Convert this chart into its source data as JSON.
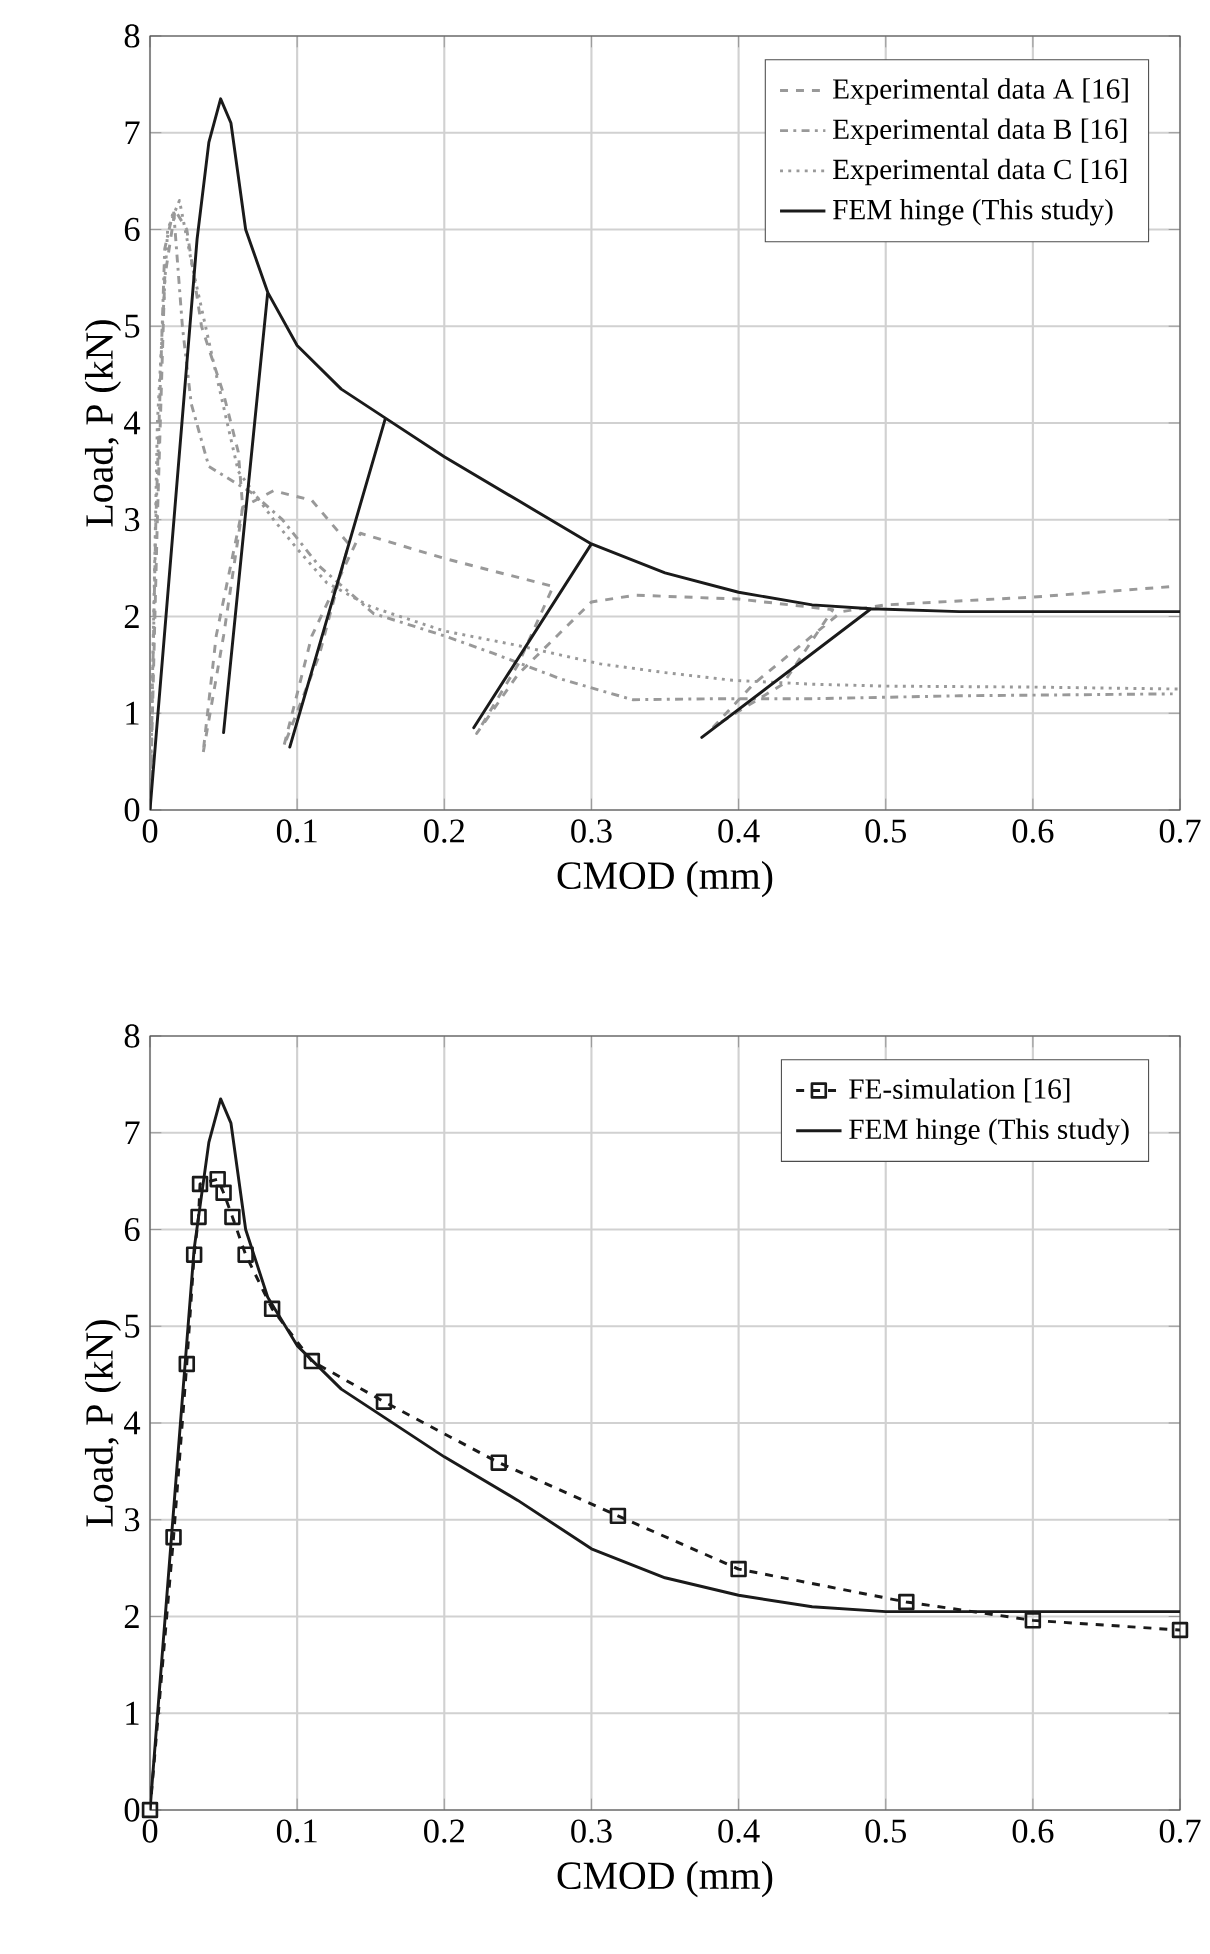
{
  "chart_data": [
    {
      "type": "line",
      "xlabel": "CMOD (mm)",
      "ylabel": "Load, P (kN)",
      "xlim": [
        0,
        0.7
      ],
      "ylim": [
        0,
        8
      ],
      "xticks": [
        0,
        0.1,
        0.2,
        0.3,
        0.4,
        0.5,
        0.6,
        0.7
      ],
      "yticks": [
        0,
        1,
        2,
        3,
        4,
        5,
        6,
        7,
        8
      ],
      "grid": true,
      "legend": "top right",
      "series": [
        {
          "name": "Experimental data A [16]",
          "color": "#999999",
          "line_style": "dashed",
          "x": [
            0,
            0.005,
            0.01,
            0.017,
            0.025,
            0.035,
            0.05,
            0.06,
            0.063,
            0.05,
            0.036,
            0.045,
            0.063,
            0.084,
            0.11,
            0.135,
            0.115,
            0.091,
            0.11,
            0.143,
            0.2,
            0.274,
            0.25,
            0.222,
            0.25,
            0.3,
            0.33,
            0.4,
            0.464,
            0.43,
            0.383,
            0.41,
            0.47,
            0.5,
            0.6,
            0.695
          ],
          "values": [
            0,
            3,
            5.5,
            6.2,
            6,
            5,
            4.3,
            3.7,
            3.13,
            1.8,
            0.58,
            1.8,
            3.13,
            3.3,
            3.2,
            2.75,
            1.6,
            0.66,
            1.8,
            2.86,
            2.6,
            2.31,
            1.5,
            0.79,
            1.4,
            2.15,
            2.22,
            2.18,
            2.07,
            1.3,
            0.86,
            1.3,
            2.05,
            2.12,
            2.2,
            2.31
          ]
        },
        {
          "name": "Experimental data B [16]",
          "color": "#999999",
          "line_style": "dashdot",
          "x": [
            0,
            0.004,
            0.01,
            0.016,
            0.022,
            0.028,
            0.04,
            0.07,
            0.09,
            0.115,
            0.152,
            0.2,
            0.233,
            0.28,
            0.328,
            0.387,
            0.45,
            0.55,
            0.695
          ],
          "values": [
            0,
            3,
            5.8,
            6.2,
            5,
            4.2,
            3.55,
            3.27,
            3.0,
            2.52,
            2.03,
            1.8,
            1.62,
            1.35,
            1.14,
            1.15,
            1.15,
            1.18,
            1.2
          ]
        },
        {
          "name": "Experimental data C [16]",
          "color": "#999999",
          "line_style": "dotted",
          "x": [
            0,
            0.005,
            0.012,
            0.02,
            0.029,
            0.045,
            0.06,
            0.084,
            0.1,
            0.12,
            0.15,
            0.2,
            0.25,
            0.306,
            0.35,
            0.396,
            0.45,
            0.5,
            0.6,
            0.7
          ],
          "values": [
            0,
            4,
            6,
            6.3,
            5.6,
            4.5,
            3.5,
            3.0,
            2.7,
            2.35,
            2.1,
            1.85,
            1.7,
            1.51,
            1.42,
            1.34,
            1.3,
            1.28,
            1.27,
            1.25
          ]
        },
        {
          "name": "FEM hinge (This study)",
          "color": "#1a1a1a",
          "line_style": "solid",
          "x": [
            0,
            0.032,
            0.04,
            0.048,
            0.055,
            0.065,
            0.08,
            0.05,
            0.08,
            0.1,
            0.13,
            0.16,
            0.095,
            0.16,
            0.2,
            0.25,
            0.3,
            0.22,
            0.3,
            0.35,
            0.4,
            0.45,
            0.49,
            0.375,
            0.49,
            0.55,
            0.6,
            0.7
          ],
          "values": [
            0,
            5.9,
            6.9,
            7.35,
            7.1,
            6.0,
            5.35,
            0.8,
            5.35,
            4.8,
            4.35,
            4.05,
            0.65,
            4.05,
            3.65,
            3.2,
            2.75,
            0.85,
            2.75,
            2.45,
            2.25,
            2.12,
            2.08,
            0.75,
            2.08,
            2.05,
            2.05,
            2.05
          ]
        }
      ]
    },
    {
      "type": "line",
      "xlabel": "CMOD (mm)",
      "ylabel": "Load, P (kN)",
      "xlim": [
        0,
        0.7
      ],
      "ylim": [
        0,
        8
      ],
      "xticks": [
        0,
        0.1,
        0.2,
        0.3,
        0.4,
        0.5,
        0.6,
        0.7
      ],
      "yticks": [
        0,
        1,
        2,
        3,
        4,
        5,
        6,
        7,
        8
      ],
      "grid": true,
      "legend": "top right",
      "series": [
        {
          "name": "FE-simulation [16]",
          "color": "#1a1a1a",
          "line_style": "dashed",
          "marker": "square",
          "x": [
            0,
            0.016,
            0.025,
            0.03,
            0.033,
            0.034,
            0.046,
            0.05,
            0.056,
            0.065,
            0.083,
            0.11,
            0.159,
            0.237,
            0.318,
            0.4,
            0.514,
            0.6,
            0.7
          ],
          "values": [
            0,
            2.82,
            4.61,
            5.74,
            6.13,
            6.47,
            6.52,
            6.38,
            6.13,
            5.74,
            5.18,
            4.64,
            4.22,
            3.59,
            3.04,
            2.49,
            2.15,
            1.96,
            1.86
          ]
        },
        {
          "name": "FEM hinge (This study)",
          "color": "#1a1a1a",
          "line_style": "solid",
          "x": [
            0,
            0.03,
            0.04,
            0.048,
            0.055,
            0.065,
            0.08,
            0.1,
            0.13,
            0.16,
            0.2,
            0.25,
            0.3,
            0.35,
            0.4,
            0.45,
            0.5,
            0.6,
            0.7
          ],
          "values": [
            0,
            5.8,
            6.9,
            7.35,
            7.1,
            6.0,
            5.3,
            4.8,
            4.35,
            4.05,
            3.65,
            3.2,
            2.7,
            2.4,
            2.22,
            2.1,
            2.05,
            2.05,
            2.05
          ]
        }
      ]
    }
  ]
}
